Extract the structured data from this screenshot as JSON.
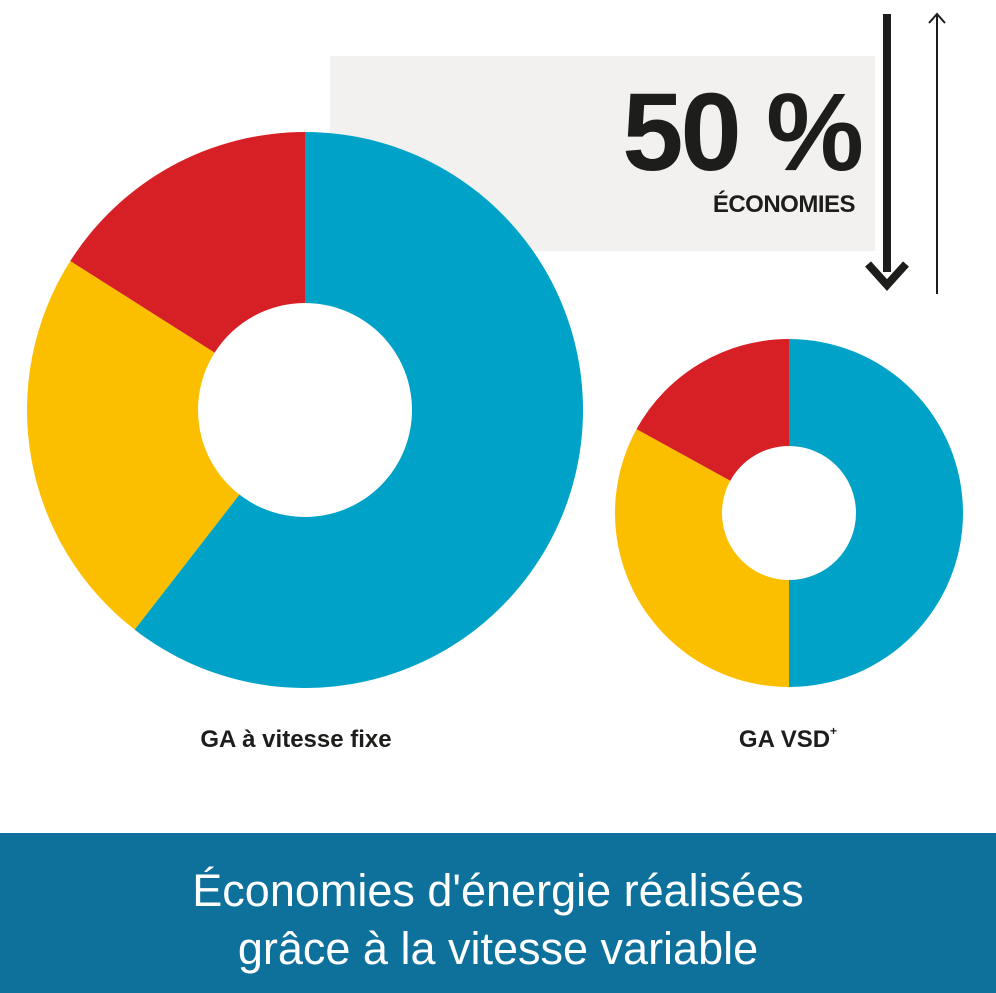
{
  "chart_data": [
    {
      "type": "pie",
      "variant": "donut",
      "label": "GA à vitesse fixe",
      "slices": [
        {
          "color": "#00a3c7",
          "value": 60.5
        },
        {
          "color": "#fcbf00",
          "value": 23.5
        },
        {
          "color": "#d71f26",
          "value": 16.0
        }
      ]
    },
    {
      "type": "pie",
      "variant": "donut",
      "label": "GA VSD",
      "label_superscript": "+",
      "slices": [
        {
          "color": "#00a3c7",
          "value": 50.0
        },
        {
          "color": "#fcbf00",
          "value": 33.0
        },
        {
          "color": "#d71f26",
          "value": 17.0
        }
      ]
    }
  ],
  "savings": {
    "value": "50 %",
    "label": "ÉCONOMIES"
  },
  "banner": {
    "line1": "Économies d'énergie réalisées",
    "line2": "grâce à la vitesse variable"
  },
  "colors": {
    "blue": "#00a3c7",
    "yellow": "#fcbf00",
    "red": "#d71f26",
    "banner": "#0e719c",
    "text": "#1d1d1b",
    "box": "#f2f1f0"
  }
}
